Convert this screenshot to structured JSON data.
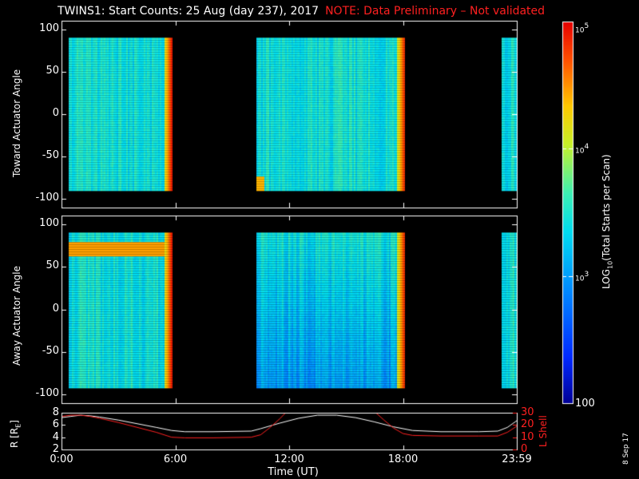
{
  "title": "TWINS1: Start Counts: 25 Aug (day 237), 2017",
  "note": "NOTE: Data Preliminary – Not validated",
  "date_stamp": "8 Sep 17",
  "colors": {
    "background": "#000000",
    "axis": "#ffffff",
    "note": "#ff2020",
    "lshell": "#ff2020",
    "r_line": "#ffffff"
  },
  "chart_data": [
    {
      "type": "heatmap",
      "ylabel": "Toward Actuator Angle",
      "ylim": [
        -110,
        110
      ],
      "yticks": [
        "100",
        "50",
        "0",
        "-50",
        "-100"
      ],
      "ytick_values": [
        100,
        50,
        0,
        -50,
        -100
      ],
      "xlim_hours": [
        0,
        24
      ],
      "angle_range": [
        -90,
        90
      ],
      "data_intervals_hours": [
        [
          0.4,
          5.8
        ],
        [
          10.3,
          18.1
        ],
        [
          23.2,
          24.0
        ]
      ],
      "colorscale": "log",
      "note": "start counts mostly ~1e3, saturated (~1e4-1e5) at the end of each interval"
    },
    {
      "type": "heatmap",
      "ylabel": "Away Actuator Angle",
      "ylim": [
        -110,
        110
      ],
      "yticks": [
        "100",
        "50",
        "0",
        "-50",
        "-100"
      ],
      "ytick_values": [
        100,
        50,
        0,
        -50,
        -100
      ],
      "xlim_hours": [
        0,
        24
      ],
      "angle_range": [
        -90,
        90
      ],
      "data_intervals_hours": [
        [
          0.4,
          5.8
        ],
        [
          10.3,
          18.1
        ],
        [
          23.2,
          24.0
        ]
      ],
      "colorscale": "log",
      "note": "enhanced band near +70 deg in first interval"
    },
    {
      "type": "line",
      "ylabel": "R [R",
      "ylabel_sub": "E",
      "ylabel_close": "]",
      "ylim": [
        2,
        8
      ],
      "yticks": [
        "8",
        "6",
        "4",
        "2"
      ],
      "ytick_values": [
        8,
        6,
        4,
        2
      ],
      "y2label": "L Shell",
      "y2ticks": [
        "30",
        "20",
        "10",
        "0"
      ],
      "y2tick_values": [
        30,
        20,
        10,
        0
      ],
      "y2lim": [
        0,
        30
      ],
      "xticks": [
        "0:00",
        "6:00",
        "12:00",
        "18:00",
        "23:59"
      ],
      "xtick_hours": [
        0,
        6,
        12,
        18,
        24
      ],
      "xlabel": "Time (UT)",
      "series": [
        {
          "axis": "left",
          "x": [
            0.0,
            0.5,
            1.0,
            1.5,
            2.0,
            3.0,
            4.0,
            5.0,
            5.8,
            6.5,
            8.0,
            10.0,
            10.5,
            11.5,
            12.5,
            13.5,
            14.5,
            15.5,
            16.5,
            17.5,
            18.5,
            20.0,
            22.0,
            23.0,
            23.5,
            24.0
          ],
          "y": [
            7.2,
            7.4,
            7.6,
            7.5,
            7.3,
            6.8,
            6.2,
            5.6,
            5.1,
            4.9,
            4.9,
            5.0,
            5.4,
            6.3,
            7.1,
            7.6,
            7.6,
            7.2,
            6.5,
            5.7,
            5.1,
            4.9,
            4.9,
            5.0,
            5.6,
            6.7
          ]
        },
        {
          "axis": "right",
          "x": [
            0.0,
            0.5,
            1.0,
            1.5,
            2.0,
            3.0,
            4.0,
            5.0,
            5.8,
            6.5,
            8.0,
            10.0,
            10.5,
            11.0,
            11.5,
            12.0,
            12.2,
            16.2,
            16.5,
            17.0,
            17.5,
            18.0,
            18.5,
            20.0,
            22.0,
            23.0,
            23.5,
            24.0
          ],
          "y": [
            27,
            28,
            28,
            27,
            25.5,
            22,
            18,
            14,
            10,
            9.5,
            9.5,
            10,
            12,
            18,
            25,
            33,
            35,
            35,
            31,
            24,
            17.5,
            13,
            11.5,
            11,
            11,
            11,
            14,
            19
          ]
        }
      ]
    }
  ],
  "colorbar": {
    "label_prefix": "LOG",
    "label_sub": "10",
    "label_suffix": "(Total Starts per Scan)",
    "ticks": [
      {
        "base": "10",
        "exp": "5"
      },
      {
        "base": "10",
        "exp": "4"
      },
      {
        "base": "10",
        "exp": "3"
      },
      {
        "base": "100",
        "exp": ""
      }
    ],
    "tick_values": [
      100000,
      10000,
      1000,
      100
    ]
  }
}
